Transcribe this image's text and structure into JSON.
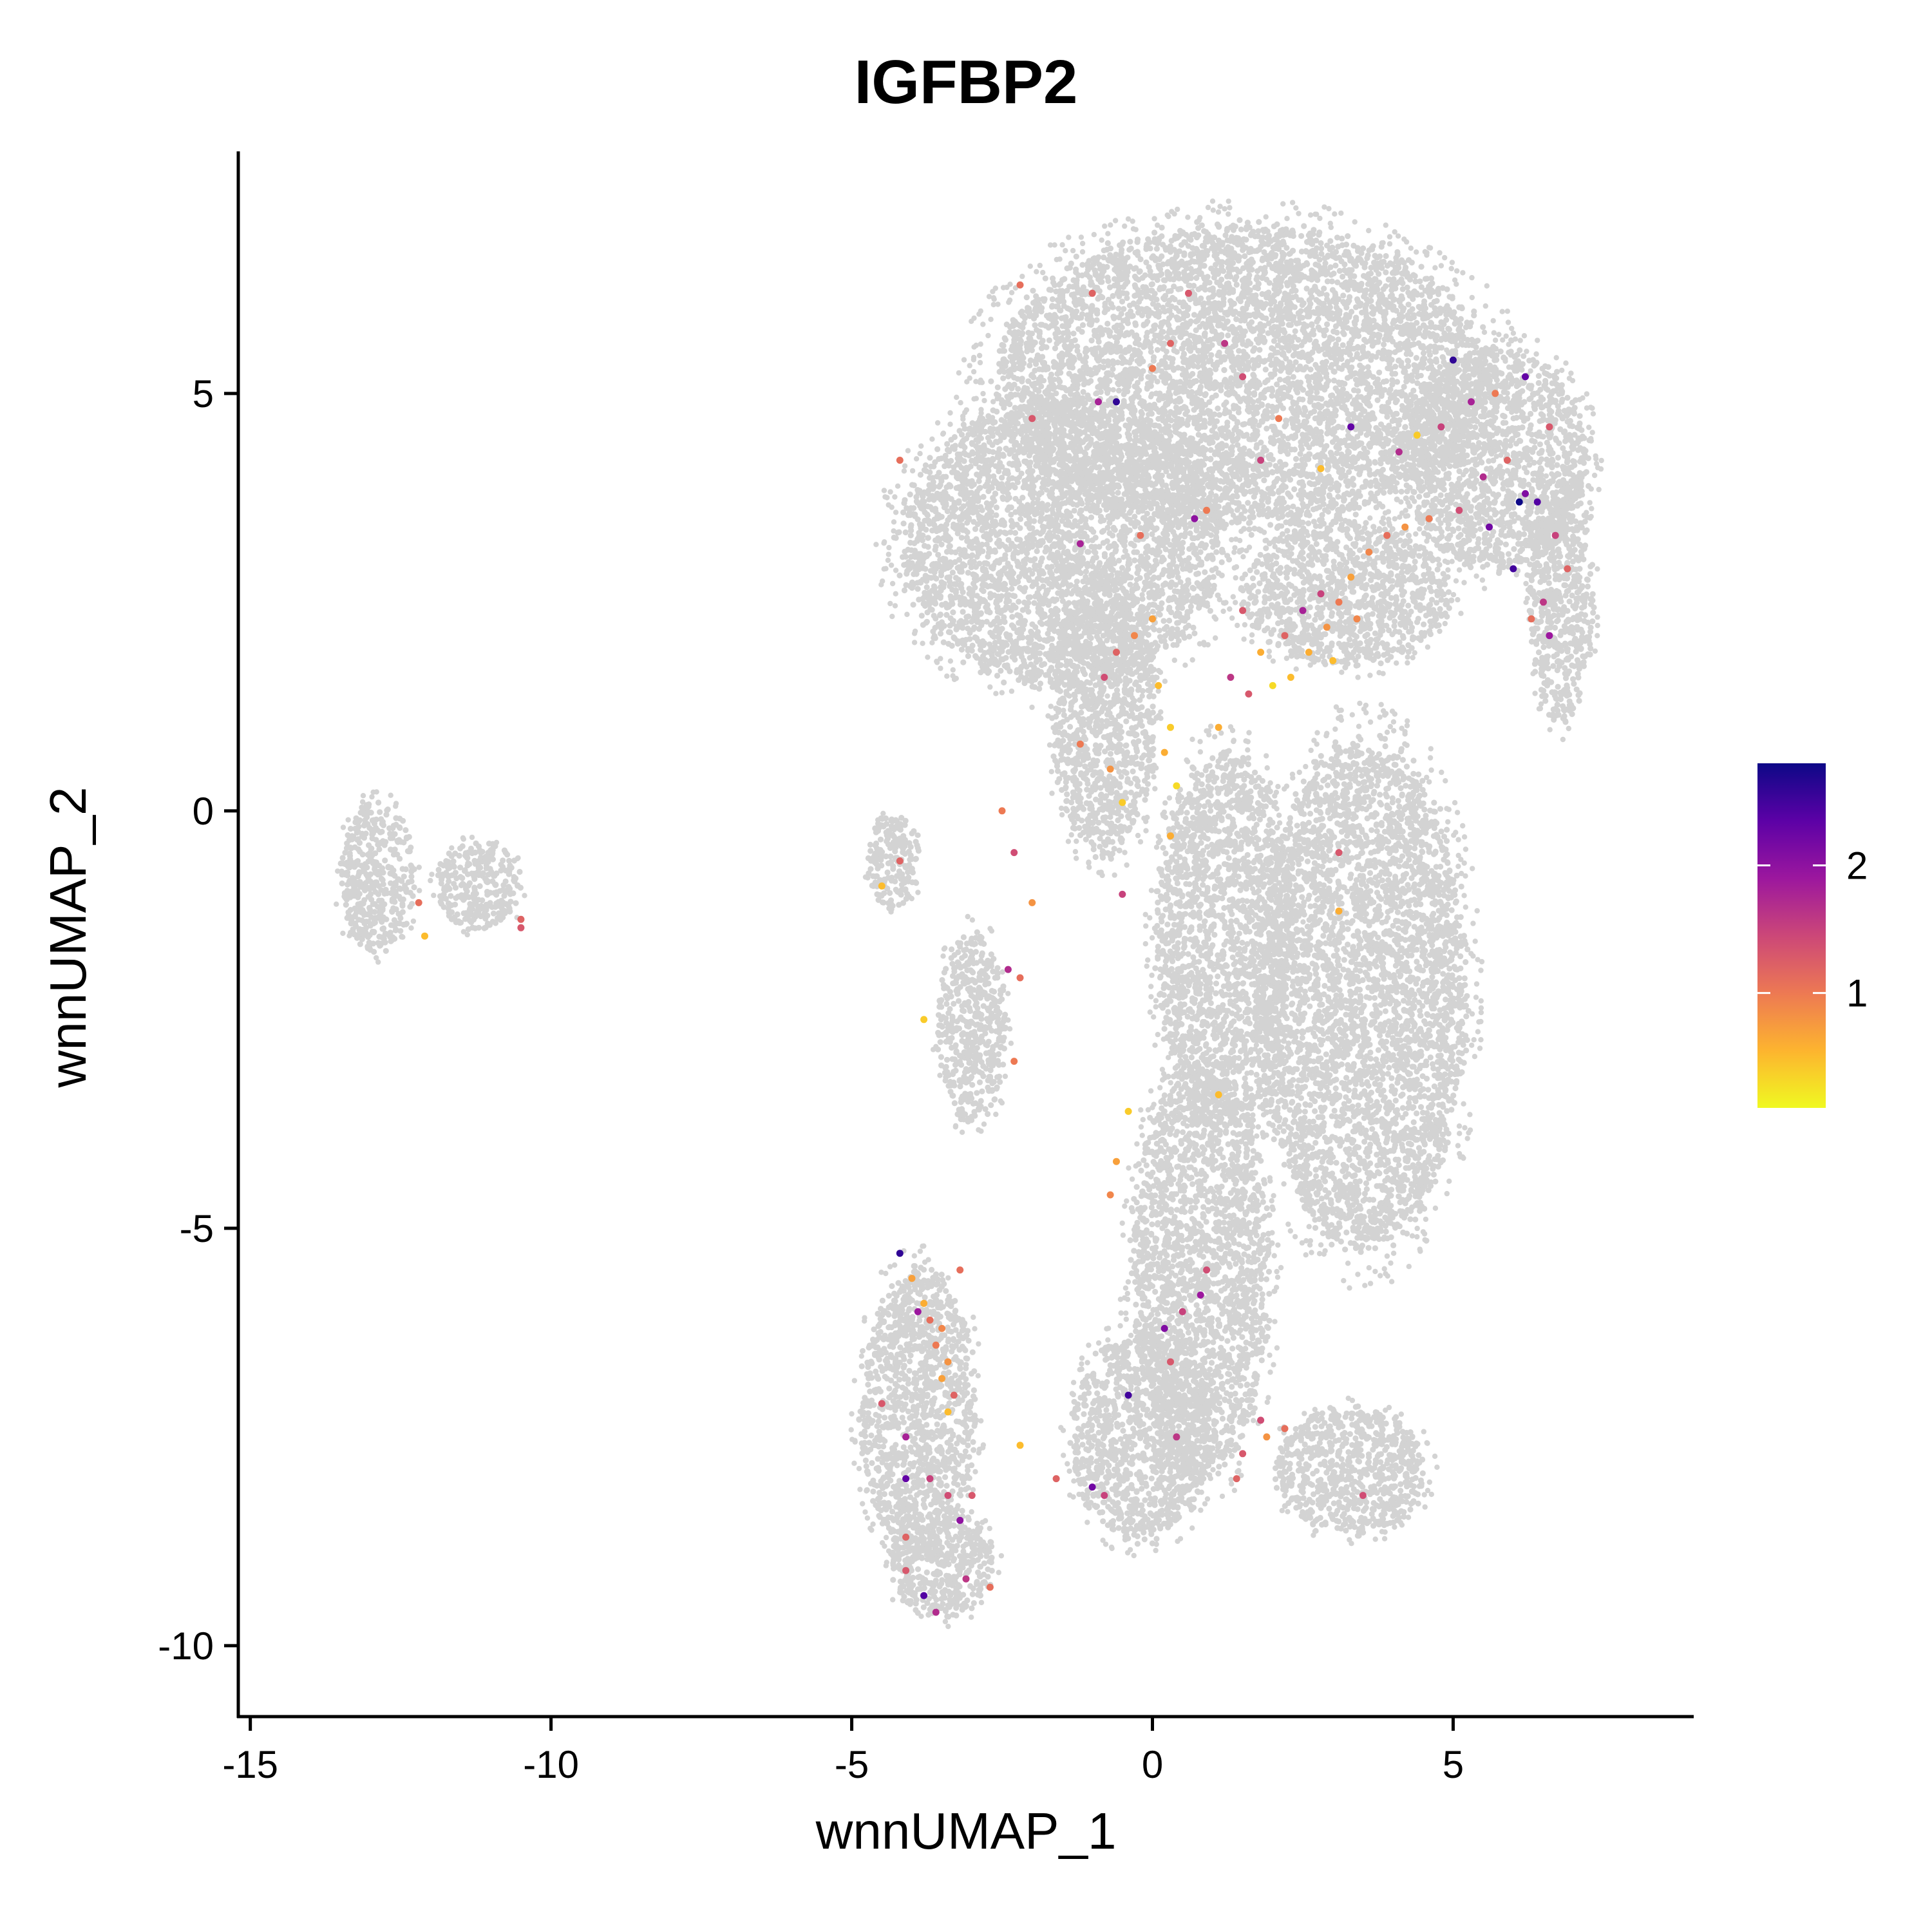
{
  "chart_data": {
    "type": "scatter",
    "title": "IGFBP2",
    "xlabel": "wnnUMAP_1",
    "ylabel": "wnnUMAP_2",
    "xlim": [
      -15.2,
      9.0
    ],
    "ylim": [
      -10.85,
      7.9
    ],
    "x_ticks": [
      -15,
      -10,
      -5,
      0,
      5
    ],
    "y_ticks": [
      -10,
      -5,
      0,
      5
    ],
    "x_tick_labels": [
      "-15",
      "-10",
      "-5",
      "0",
      "5"
    ],
    "y_tick_labels": [
      "-10",
      "-5",
      "0",
      "5"
    ],
    "grid": false,
    "background_color": "#d3d3d3",
    "colorbar": {
      "min": 0.1,
      "max": 2.8,
      "ticks": [
        1,
        2
      ],
      "tick_labels": [
        "1",
        "2"
      ],
      "colors": [
        "#f0f921",
        "#fdb42f",
        "#ed7953",
        "#cc4778",
        "#9c179e",
        "#5c01a6",
        "#0d0887"
      ],
      "placement": "right"
    },
    "background_regions": [
      {
        "cx": 1.5,
        "cy": 5.2,
        "rx": 4.3,
        "ry": 1.9
      },
      {
        "cx": -1.5,
        "cy": 3.2,
        "rx": 2.8,
        "ry": 1.8
      },
      {
        "cx": 5.7,
        "cy": 4.2,
        "rx": 1.6,
        "ry": 1.4
      },
      {
        "cx": 6.8,
        "cy": 2.5,
        "rx": 0.55,
        "ry": 1.5
      },
      {
        "cx": 3.2,
        "cy": 2.6,
        "rx": 1.8,
        "ry": 0.9
      },
      {
        "cx": 3.5,
        "cy": -2.2,
        "rx": 1.8,
        "ry": 3.2
      },
      {
        "cx": 1.2,
        "cy": -1.5,
        "rx": 1.2,
        "ry": 2.3
      },
      {
        "cx": 0.8,
        "cy": -5.5,
        "rx": 1.2,
        "ry": 2.6
      },
      {
        "cx": -0.2,
        "cy": -7.5,
        "rx": 1.2,
        "ry": 1.3
      },
      {
        "cx": -3.9,
        "cy": -7.2,
        "rx": 1.0,
        "ry": 1.8
      },
      {
        "cx": -3.5,
        "cy": -9.0,
        "rx": 0.9,
        "ry": 0.7
      },
      {
        "cx": 3.3,
        "cy": -7.9,
        "rx": 1.3,
        "ry": 0.8
      },
      {
        "cx": -0.8,
        "cy": 1.2,
        "rx": 0.9,
        "ry": 1.8
      },
      {
        "cx": -4.3,
        "cy": -0.6,
        "rx": 0.45,
        "ry": 0.6
      },
      {
        "cx": -3.0,
        "cy": -2.6,
        "rx": 0.6,
        "ry": 1.2
      },
      {
        "cx": -12.9,
        "cy": -0.8,
        "rx": 0.65,
        "ry": 0.95
      },
      {
        "cx": -11.2,
        "cy": -0.9,
        "rx": 0.75,
        "ry": 0.55
      }
    ],
    "expressing_cells": [
      {
        "x": 2.0,
        "y": 1.5,
        "v": 0.3
      },
      {
        "x": 2.3,
        "y": 1.6,
        "v": 0.5
      },
      {
        "x": 2.6,
        "y": 1.9,
        "v": 0.6
      },
      {
        "x": 2.9,
        "y": 2.2,
        "v": 0.8
      },
      {
        "x": 3.1,
        "y": 2.5,
        "v": 1.0
      },
      {
        "x": 3.3,
        "y": 2.8,
        "v": 0.7
      },
      {
        "x": 3.6,
        "y": 3.1,
        "v": 0.9
      },
      {
        "x": 3.9,
        "y": 3.3,
        "v": 1.1
      },
      {
        "x": 4.2,
        "y": 3.4,
        "v": 0.8
      },
      {
        "x": 1.8,
        "y": 1.9,
        "v": 0.6
      },
      {
        "x": 2.2,
        "y": 2.1,
        "v": 1.2
      },
      {
        "x": 2.8,
        "y": 2.6,
        "v": 1.5
      },
      {
        "x": 3.0,
        "y": 1.8,
        "v": 0.5
      },
      {
        "x": 3.4,
        "y": 2.3,
        "v": 0.9
      },
      {
        "x": 2.5,
        "y": 2.4,
        "v": 1.8
      },
      {
        "x": 1.6,
        "y": 1.4,
        "v": 1.3
      },
      {
        "x": 1.3,
        "y": 1.6,
        "v": 1.6
      },
      {
        "x": 4.6,
        "y": 3.5,
        "v": 1.0
      },
      {
        "x": 5.1,
        "y": 3.6,
        "v": 1.4
      },
      {
        "x": 5.5,
        "y": 4.0,
        "v": 1.7
      },
      {
        "x": 5.9,
        "y": 4.2,
        "v": 1.2
      },
      {
        "x": 6.2,
        "y": 3.8,
        "v": 2.1
      },
      {
        "x": 6.1,
        "y": 3.7,
        "v": 2.8
      },
      {
        "x": 6.4,
        "y": 3.7,
        "v": 2.4
      },
      {
        "x": 6.7,
        "y": 3.3,
        "v": 1.5
      },
      {
        "x": 6.9,
        "y": 2.9,
        "v": 1.2
      },
      {
        "x": 6.5,
        "y": 2.5,
        "v": 1.6
      },
      {
        "x": 6.0,
        "y": 2.9,
        "v": 2.5
      },
      {
        "x": 6.3,
        "y": 2.3,
        "v": 1.1
      },
      {
        "x": 6.6,
        "y": 2.1,
        "v": 1.9
      },
      {
        "x": 5.6,
        "y": 3.4,
        "v": 2.2
      },
      {
        "x": 5.3,
        "y": 4.9,
        "v": 1.8
      },
      {
        "x": 5.7,
        "y": 5.0,
        "v": 1.0
      },
      {
        "x": 6.2,
        "y": 5.2,
        "v": 2.3
      },
      {
        "x": 4.8,
        "y": 4.6,
        "v": 1.5
      },
      {
        "x": 5.0,
        "y": 5.4,
        "v": 2.6
      },
      {
        "x": 6.6,
        "y": 4.6,
        "v": 1.3
      },
      {
        "x": 4.4,
        "y": 4.5,
        "v": 0.4
      },
      {
        "x": 4.1,
        "y": 4.3,
        "v": 1.7
      },
      {
        "x": 0.3,
        "y": 1.0,
        "v": 0.4
      },
      {
        "x": 0.1,
        "y": 1.5,
        "v": 0.5
      },
      {
        "x": 0.0,
        "y": 2.3,
        "v": 0.7
      },
      {
        "x": -0.3,
        "y": 2.1,
        "v": 0.9
      },
      {
        "x": -0.6,
        "y": 1.9,
        "v": 1.2
      },
      {
        "x": -0.8,
        "y": 1.6,
        "v": 1.4
      },
      {
        "x": 0.4,
        "y": 0.3,
        "v": 0.3
      },
      {
        "x": 0.2,
        "y": 0.7,
        "v": 0.6
      },
      {
        "x": -0.2,
        "y": 3.3,
        "v": 1.1
      },
      {
        "x": 0.7,
        "y": 3.5,
        "v": 2.0
      },
      {
        "x": -1.2,
        "y": 0.8,
        "v": 1.0
      },
      {
        "x": -0.5,
        "y": 0.1,
        "v": 0.4
      },
      {
        "x": 1.1,
        "y": 1.0,
        "v": 0.6
      },
      {
        "x": 1.5,
        "y": 2.4,
        "v": 1.3
      },
      {
        "x": -2.2,
        "y": 6.3,
        "v": 1.1
      },
      {
        "x": -1.0,
        "y": 6.2,
        "v": 1.2
      },
      {
        "x": 0.6,
        "y": 6.2,
        "v": 1.3
      },
      {
        "x": -0.6,
        "y": 4.9,
        "v": 2.6
      },
      {
        "x": -0.9,
        "y": 4.9,
        "v": 1.8
      },
      {
        "x": 0.0,
        "y": 5.3,
        "v": 1.0
      },
      {
        "x": 0.3,
        "y": 5.6,
        "v": 1.2
      },
      {
        "x": 1.5,
        "y": 5.2,
        "v": 1.4
      },
      {
        "x": 2.1,
        "y": 4.7,
        "v": 1.0
      },
      {
        "x": -2.0,
        "y": 4.7,
        "v": 1.3
      },
      {
        "x": -4.2,
        "y": 4.2,
        "v": 1.1
      },
      {
        "x": 1.8,
        "y": 4.2,
        "v": 1.5
      },
      {
        "x": 3.3,
        "y": 4.6,
        "v": 2.3
      },
      {
        "x": 2.8,
        "y": 4.1,
        "v": 0.5
      },
      {
        "x": 1.2,
        "y": 5.6,
        "v": 1.6
      },
      {
        "x": -1.2,
        "y": 3.2,
        "v": 1.8
      },
      {
        "x": 0.9,
        "y": 3.6,
        "v": 1.0
      },
      {
        "x": -4.2,
        "y": -0.6,
        "v": 1.2
      },
      {
        "x": -4.5,
        "y": -0.9,
        "v": 0.5
      },
      {
        "x": -2.5,
        "y": 0.0,
        "v": 1.0
      },
      {
        "x": -2.3,
        "y": -0.5,
        "v": 1.4
      },
      {
        "x": -2.0,
        "y": -1.1,
        "v": 0.8
      },
      {
        "x": -2.4,
        "y": -1.9,
        "v": 1.7
      },
      {
        "x": -2.2,
        "y": -2.0,
        "v": 1.1
      },
      {
        "x": -3.8,
        "y": -2.5,
        "v": 0.4
      },
      {
        "x": -2.3,
        "y": -3.0,
        "v": 1.0
      },
      {
        "x": -0.5,
        "y": -1.0,
        "v": 1.5
      },
      {
        "x": -0.7,
        "y": 0.5,
        "v": 0.8
      },
      {
        "x": 0.3,
        "y": -0.3,
        "v": 0.6
      },
      {
        "x": 3.1,
        "y": -0.5,
        "v": 1.3
      },
      {
        "x": 3.1,
        "y": -1.2,
        "v": 0.6
      },
      {
        "x": 1.1,
        "y": -3.4,
        "v": 0.5
      },
      {
        "x": -0.4,
        "y": -3.6,
        "v": 0.4
      },
      {
        "x": -0.6,
        "y": -4.2,
        "v": 0.7
      },
      {
        "x": -0.7,
        "y": -4.6,
        "v": 0.9
      },
      {
        "x": -4.2,
        "y": -5.3,
        "v": 2.6
      },
      {
        "x": -4.0,
        "y": -5.6,
        "v": 0.7
      },
      {
        "x": -3.9,
        "y": -6.0,
        "v": 1.9
      },
      {
        "x": -3.7,
        "y": -6.1,
        "v": 1.1
      },
      {
        "x": -3.5,
        "y": -6.2,
        "v": 0.9
      },
      {
        "x": -3.6,
        "y": -6.4,
        "v": 1.0
      },
      {
        "x": -3.4,
        "y": -6.6,
        "v": 0.8
      },
      {
        "x": -3.5,
        "y": -6.8,
        "v": 0.7
      },
      {
        "x": -3.3,
        "y": -7.0,
        "v": 1.2
      },
      {
        "x": -3.4,
        "y": -7.2,
        "v": 0.5
      },
      {
        "x": -4.5,
        "y": -7.1,
        "v": 1.3
      },
      {
        "x": -4.1,
        "y": -7.5,
        "v": 1.8
      },
      {
        "x": -4.1,
        "y": -8.0,
        "v": 2.3
      },
      {
        "x": -3.7,
        "y": -8.0,
        "v": 1.5
      },
      {
        "x": -3.4,
        "y": -8.2,
        "v": 1.4
      },
      {
        "x": -3.2,
        "y": -8.5,
        "v": 2.0
      },
      {
        "x": -4.1,
        "y": -8.7,
        "v": 1.2
      },
      {
        "x": -4.1,
        "y": -9.1,
        "v": 1.3
      },
      {
        "x": -3.1,
        "y": -9.2,
        "v": 1.6
      },
      {
        "x": -3.8,
        "y": -9.4,
        "v": 2.4
      },
      {
        "x": -2.7,
        "y": -9.3,
        "v": 1.1
      },
      {
        "x": -3.6,
        "y": -9.6,
        "v": 1.7
      },
      {
        "x": -3.8,
        "y": -5.9,
        "v": 0.6
      },
      {
        "x": -3.2,
        "y": -5.5,
        "v": 1.1
      },
      {
        "x": 0.9,
        "y": -5.5,
        "v": 1.4
      },
      {
        "x": 0.8,
        "y": -5.8,
        "v": 1.9
      },
      {
        "x": 0.5,
        "y": -6.0,
        "v": 1.5
      },
      {
        "x": 0.2,
        "y": -6.2,
        "v": 2.1
      },
      {
        "x": 0.3,
        "y": -6.6,
        "v": 1.3
      },
      {
        "x": -0.4,
        "y": -7.0,
        "v": 2.5
      },
      {
        "x": 0.4,
        "y": -7.5,
        "v": 1.6
      },
      {
        "x": -1.0,
        "y": -8.1,
        "v": 2.2
      },
      {
        "x": -0.8,
        "y": -8.2,
        "v": 1.5
      },
      {
        "x": -2.2,
        "y": -7.6,
        "v": 0.5
      },
      {
        "x": -1.6,
        "y": -8.0,
        "v": 1.2
      },
      {
        "x": -3.0,
        "y": -8.2,
        "v": 1.3
      },
      {
        "x": 1.8,
        "y": -7.3,
        "v": 1.4
      },
      {
        "x": 2.2,
        "y": -7.4,
        "v": 1.1
      },
      {
        "x": 1.9,
        "y": -7.5,
        "v": 0.8
      },
      {
        "x": 1.5,
        "y": -7.7,
        "v": 1.3
      },
      {
        "x": 1.4,
        "y": -8.0,
        "v": 1.2
      },
      {
        "x": 3.5,
        "y": -8.2,
        "v": 1.4
      },
      {
        "x": -12.2,
        "y": -1.1,
        "v": 1.1
      },
      {
        "x": -12.1,
        "y": -1.5,
        "v": 0.5
      },
      {
        "x": -10.5,
        "y": -1.3,
        "v": 1.2
      },
      {
        "x": -10.5,
        "y": -1.4,
        "v": 1.3
      }
    ]
  }
}
